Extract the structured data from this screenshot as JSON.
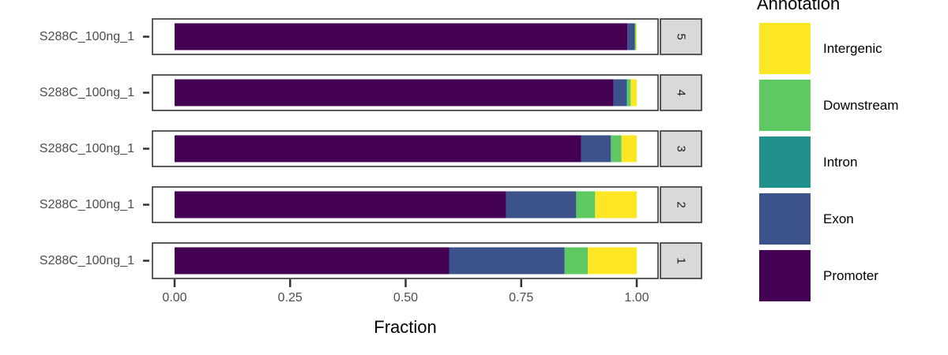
{
  "chart_data": {
    "type": "bar",
    "orientation": "horizontal",
    "stacked": true,
    "xlabel": "Fraction",
    "ylabel": "",
    "xlim": [
      0,
      1
    ],
    "x_ticks": [
      "0.00",
      "0.25",
      "0.50",
      "0.75",
      "1.00"
    ],
    "grid": false,
    "legend": {
      "title": "Annotation",
      "placement": "right",
      "entries": [
        {
          "name": "Intergenic",
          "color": "#fde725"
        },
        {
          "name": "Downstream",
          "color": "#5ec962"
        },
        {
          "name": "Intron",
          "color": "#21918c"
        },
        {
          "name": "Exon",
          "color": "#3b528b"
        },
        {
          "name": "Promoter",
          "color": "#440154"
        }
      ]
    },
    "series_order": [
      "Promoter",
      "Exon",
      "Intron",
      "Downstream",
      "Intergenic"
    ],
    "panels": [
      {
        "facet": "5",
        "category": "S288C_100ng_1",
        "values": {
          "Promoter": 0.98,
          "Exon": 0.015,
          "Intron": 0.002,
          "Downstream": 0.001,
          "Intergenic": 0.002
        }
      },
      {
        "facet": "4",
        "category": "S288C_100ng_1",
        "values": {
          "Promoter": 0.95,
          "Exon": 0.028,
          "Intron": 0.002,
          "Downstream": 0.007,
          "Intergenic": 0.013
        }
      },
      {
        "facet": "3",
        "category": "S288C_100ng_1",
        "values": {
          "Promoter": 0.88,
          "Exon": 0.064,
          "Intron": 0.001,
          "Downstream": 0.022,
          "Intergenic": 0.033
        }
      },
      {
        "facet": "2",
        "category": "S288C_100ng_1",
        "values": {
          "Promoter": 0.717,
          "Exon": 0.152,
          "Intron": 0.0,
          "Downstream": 0.041,
          "Intergenic": 0.09
        }
      },
      {
        "facet": "1",
        "category": "S288C_100ng_1",
        "values": {
          "Promoter": 0.594,
          "Exon": 0.25,
          "Intron": 0.0,
          "Downstream": 0.05,
          "Intergenic": 0.106
        }
      }
    ]
  }
}
